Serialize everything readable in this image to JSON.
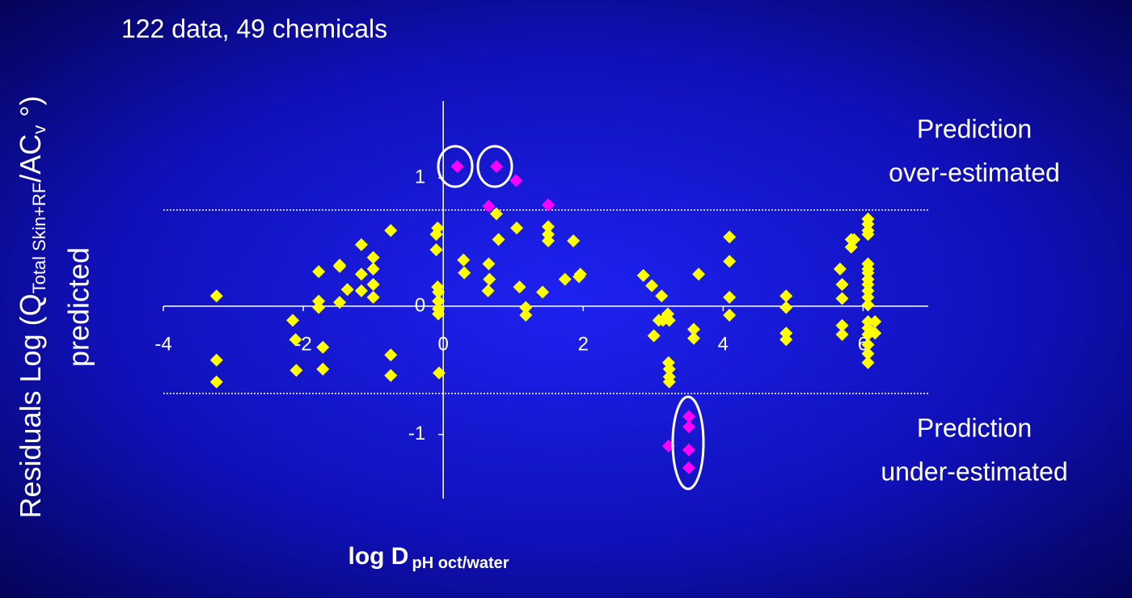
{
  "chart_data": {
    "type": "scatter",
    "subtitle": "122 data, 49 chemicals",
    "ylabel": {
      "line1": [
        "Residuals Log (Q",
        "Total Skin+RF",
        "/AC",
        "v",
        " °)"
      ],
      "line2": "predicted"
    },
    "xlabel": [
      "log D",
      "pH oct/water"
    ],
    "annotations": [
      "Prediction",
      "over-estimated",
      "Prediction",
      "under-estimated"
    ],
    "xlim": [
      -4,
      7
    ],
    "ylim": [
      -1.5,
      1.6
    ],
    "xticks": [
      -4,
      -2,
      0,
      2,
      4,
      6
    ],
    "yticks": [
      -1,
      0,
      1
    ],
    "hlines": [
      0.75,
      -0.68
    ],
    "series": [
      {
        "color": "#ffff00",
        "x": [
          -3.24,
          -3.24,
          -3.24,
          -2.15,
          -2.11,
          -2.1,
          -1.78,
          -1.78,
          -1.78,
          -1.72,
          -1.72,
          -1.48,
          -1.48,
          -1.48,
          -1.37,
          -1.17,
          -1.17,
          -1.17,
          -1.0,
          -1.0,
          -1.0,
          -1.0,
          -0.75,
          -0.75,
          -0.75,
          -0.1,
          -0.08,
          -0.1,
          -0.08,
          -0.07,
          -0.07,
          -0.07,
          -0.07,
          -0.06,
          0.29,
          0.3,
          0.65,
          0.66,
          0.64,
          0.76,
          0.79,
          1.05,
          1.09,
          1.18,
          1.18,
          1.42,
          1.5,
          1.5,
          1.5,
          1.74,
          1.86,
          1.94,
          1.96,
          2.86,
          2.98,
          3.12,
          3.08,
          3.01,
          3.14,
          3.21,
          3.23,
          3.22,
          3.23,
          3.23,
          3.23,
          3.58,
          3.58,
          3.65,
          4.09,
          4.09,
          4.09,
          4.09,
          4.9,
          4.9,
          4.9,
          4.9,
          5.67,
          5.7,
          5.7,
          5.7,
          5.7,
          5.83,
          5.83,
          5.87,
          6.07,
          6.07,
          6.07,
          6.07,
          6.07,
          6.07,
          6.07,
          6.07,
          6.07,
          6.07,
          6.07,
          6.07,
          6.07,
          6.07,
          6.07,
          6.07,
          6.07,
          6.07,
          6.17,
          6.17
        ],
        "values": [
          0.08,
          -0.42,
          -0.59,
          -0.11,
          -0.26,
          -0.5,
          0.27,
          0.04,
          -0.01,
          -0.32,
          -0.49,
          0.32,
          0.31,
          0.03,
          0.13,
          0.48,
          0.25,
          0.12,
          0.38,
          0.29,
          0.17,
          0.07,
          0.59,
          -0.38,
          -0.54,
          0.56,
          0.61,
          0.44,
          0.15,
          0.11,
          0.04,
          -0.02,
          -0.06,
          -0.52,
          0.36,
          0.26,
          0.33,
          0.21,
          0.12,
          0.72,
          0.52,
          0.61,
          0.15,
          -0.01,
          -0.07,
          0.11,
          0.62,
          0.56,
          0.51,
          0.21,
          0.51,
          0.23,
          0.25,
          0.24,
          0.16,
          0.08,
          -0.11,
          -0.23,
          -0.11,
          -0.06,
          -0.11,
          -0.44,
          -0.49,
          -0.55,
          -0.59,
          -0.18,
          -0.25,
          0.25,
          0.54,
          0.35,
          0.07,
          -0.07,
          0.08,
          -0.01,
          -0.21,
          -0.26,
          0.29,
          0.17,
          0.06,
          -0.15,
          -0.22,
          0.52,
          0.46,
          0.52,
          0.68,
          0.64,
          0.59,
          0.56,
          0.33,
          0.29,
          0.26,
          0.21,
          0.17,
          0.12,
          0.07,
          0.01,
          -0.12,
          -0.17,
          -0.22,
          -0.3,
          -0.37,
          -0.44,
          -0.12,
          -0.21
        ]
      },
      {
        "color": "#ff00ff",
        "x": [
          0.2,
          0.76,
          1.04,
          0.65,
          1.5,
          3.22,
          3.51,
          3.51,
          3.51,
          3.51
        ],
        "values": [
          1.09,
          1.09,
          0.98,
          0.78,
          0.79,
          -1.09,
          -0.86,
          -0.94,
          -1.12,
          -1.26
        ]
      }
    ]
  }
}
